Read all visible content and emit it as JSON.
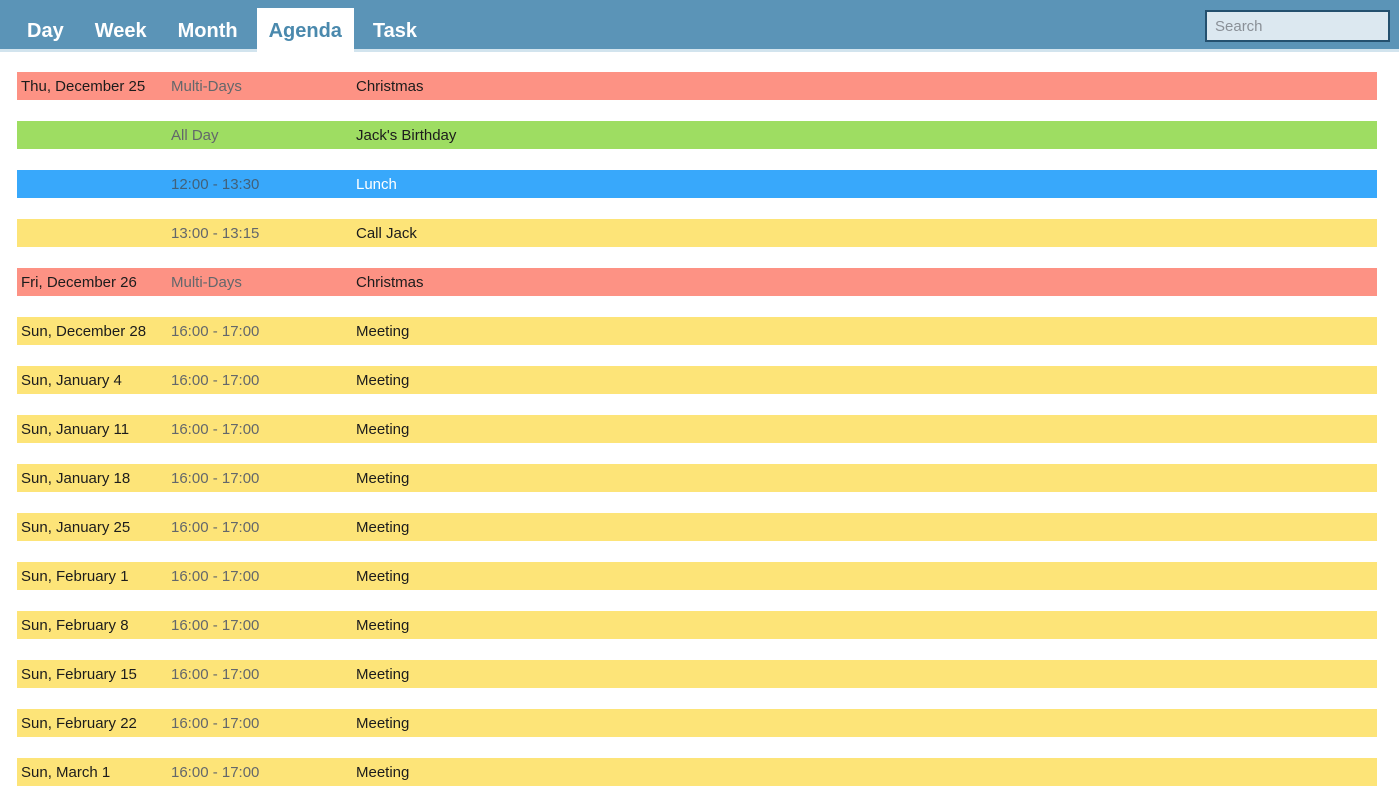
{
  "header": {
    "tabs": [
      {
        "label": "Day",
        "active": false
      },
      {
        "label": "Week",
        "active": false
      },
      {
        "label": "Month",
        "active": false
      },
      {
        "label": "Agenda",
        "active": true
      },
      {
        "label": "Task",
        "active": false
      }
    ],
    "search": {
      "placeholder": "Search",
      "value": ""
    }
  },
  "agenda": {
    "rows": [
      {
        "date": "Thu, December 25",
        "time": "Multi-Days",
        "subject": "Christmas",
        "color": "red"
      },
      {
        "date": "",
        "time": "All Day",
        "subject": "Jack's Birthday",
        "color": "green"
      },
      {
        "date": "",
        "time": "12:00 - 13:30",
        "subject": "Lunch",
        "color": "blue"
      },
      {
        "date": "",
        "time": "13:00 - 13:15",
        "subject": "Call Jack",
        "color": "yellow"
      },
      {
        "date": "Fri, December 26",
        "time": "Multi-Days",
        "subject": "Christmas",
        "color": "red"
      },
      {
        "date": "Sun, December 28",
        "time": "16:00 - 17:00",
        "subject": "Meeting",
        "color": "yellow"
      },
      {
        "date": "Sun, January 4",
        "time": "16:00 - 17:00",
        "subject": "Meeting",
        "color": "yellow"
      },
      {
        "date": "Sun, January 11",
        "time": "16:00 - 17:00",
        "subject": "Meeting",
        "color": "yellow"
      },
      {
        "date": "Sun, January 18",
        "time": "16:00 - 17:00",
        "subject": "Meeting",
        "color": "yellow"
      },
      {
        "date": "Sun, January 25",
        "time": "16:00 - 17:00",
        "subject": "Meeting",
        "color": "yellow"
      },
      {
        "date": "Sun, February 1",
        "time": "16:00 - 17:00",
        "subject": "Meeting",
        "color": "yellow"
      },
      {
        "date": "Sun, February 8",
        "time": "16:00 - 17:00",
        "subject": "Meeting",
        "color": "yellow"
      },
      {
        "date": "Sun, February 15",
        "time": "16:00 - 17:00",
        "subject": "Meeting",
        "color": "yellow"
      },
      {
        "date": "Sun, February 22",
        "time": "16:00 - 17:00",
        "subject": "Meeting",
        "color": "yellow"
      },
      {
        "date": "Sun, March 1",
        "time": "16:00 - 17:00",
        "subject": "Meeting",
        "color": "yellow"
      }
    ]
  },
  "colors": {
    "header_bar": "#5b94b7",
    "header_strip": "#d2e4ee",
    "tab_text": "#ffffff",
    "active_tab_bg": "#ffffff",
    "active_tab_text": "#4a89ad",
    "search_bg": "#dce8f0",
    "search_border": "#24506e",
    "search_placeholder": "#8a9097",
    "text_dark": "#1c1c1c",
    "text_muted": "#63676b",
    "event_red": "#fd9284",
    "event_green": "#9edd62",
    "event_blue": "#38a8fb",
    "event_yellow": "#fde478",
    "event_blue_subject_text": "#ffffff"
  }
}
